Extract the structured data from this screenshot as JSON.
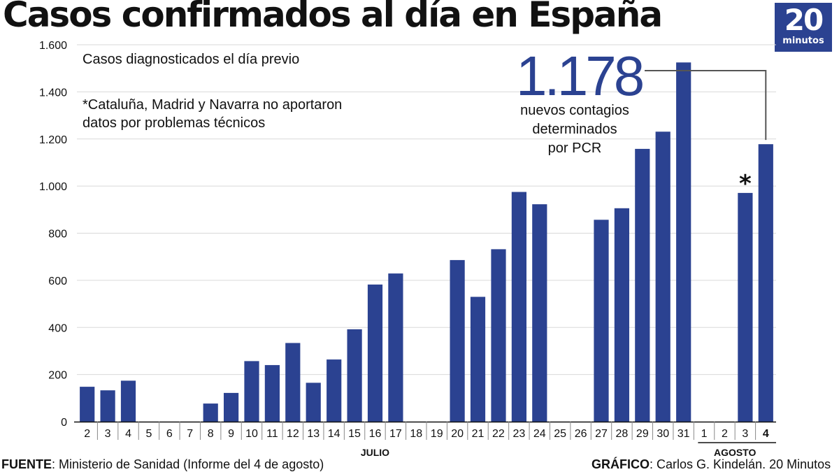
{
  "title": "Casos confirmados al día en España",
  "logo": {
    "number": "20",
    "word": "minutos",
    "color": "#2b4291"
  },
  "annotations": {
    "subtitle": "Casos diagnosticados el día previo",
    "footnote_line1": "*Cataluña, Madrid y Navarra no aportaron",
    "footnote_line2": "datos por problemas técnicos",
    "highlight_value": "1.178",
    "callout_line1": "nuevos contagios",
    "callout_line2": "determinados",
    "callout_line3": "por PCR",
    "star": "*"
  },
  "footer": {
    "source_label": "FUENTE",
    "source_text": ": Ministerio de Sanidad (Informe del 4 de agosto)",
    "credit_label": "GRÁFICO",
    "credit_text": ": Carlos G. Kindelán. 20 Minutos"
  },
  "chart_data": {
    "type": "bar",
    "title": "Casos confirmados al día en España",
    "xlabel": "",
    "ylabel": "",
    "ylim": [
      0,
      1600
    ],
    "yticks": [
      0,
      200,
      400,
      600,
      800,
      1000,
      1200,
      1400,
      1600
    ],
    "ytick_labels": [
      "0",
      "200",
      "400",
      "600",
      "800",
      "1.000",
      "1.200",
      "1.400",
      "1.600"
    ],
    "grid": true,
    "bar_color": "#2b4291",
    "categories": [
      "2",
      "3",
      "4",
      "5",
      "6",
      "7",
      "8",
      "9",
      "10",
      "11",
      "12",
      "13",
      "14",
      "15",
      "16",
      "17",
      "18",
      "19",
      "20",
      "21",
      "22",
      "23",
      "24",
      "25",
      "26",
      "27",
      "28",
      "29",
      "30",
      "31",
      "1",
      "2",
      "3",
      "4"
    ],
    "bold_categories": [
      33
    ],
    "values": [
      148,
      133,
      174,
      0,
      0,
      0,
      77,
      122,
      257,
      240,
      334,
      165,
      264,
      392,
      582,
      629,
      0,
      0,
      686,
      530,
      732,
      975,
      923,
      0,
      0,
      857,
      906,
      1158,
      1231,
      1525,
      0,
      0,
      971,
      1178
    ],
    "month_labels": [
      {
        "label": "JULIO",
        "start": 0,
        "end": 29
      },
      {
        "label": "AGOSTO",
        "start": 30,
        "end": 33
      }
    ],
    "starred_index": 32,
    "highlight_index": 33
  }
}
